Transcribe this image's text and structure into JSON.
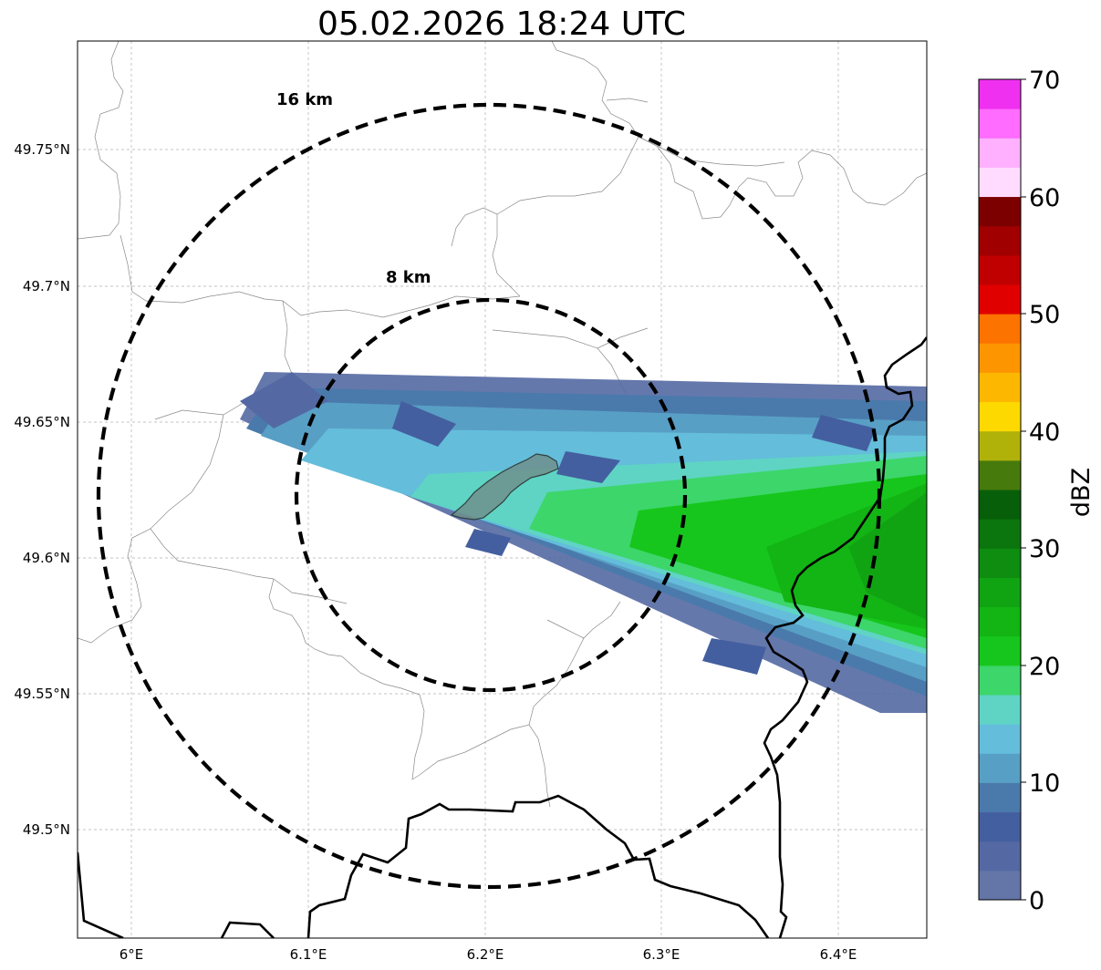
{
  "map": {
    "title": "05.02.2026 18:24 UTC",
    "longitude_labels": [
      "6°E",
      "6.1°E",
      "6.2°E",
      "6.3°E",
      "6.4°E"
    ],
    "latitude_labels": [
      "49.75°N",
      "49.7°N",
      "49.65°N",
      "49.6°N",
      "49.55°N",
      "49.5°N"
    ],
    "range_rings": [
      {
        "label": "16 km",
        "radius_km": 16
      },
      {
        "label": "8 km",
        "radius_km": 8
      }
    ],
    "ring_color": "#000000",
    "highlighted_area_color": "#6f8f8c"
  },
  "colorbar": {
    "label": "dBZ",
    "tick_labels": [
      "0",
      "10",
      "20",
      "30",
      "40",
      "50",
      "60",
      "70"
    ],
    "colors": [
      "#6475a7",
      "#5469a3",
      "#445f9f",
      "#4a7aab",
      "#589fc5",
      "#64bddb",
      "#5fd4c4",
      "#3dd66a",
      "#16c61c",
      "#12b514",
      "#10a412",
      "#0e8d10",
      "#0b760d",
      "#075f09",
      "#477a0c",
      "#b0b20a",
      "#fdd900",
      "#fdb700",
      "#fd9500",
      "#fd7300",
      "#e00000",
      "#c00000",
      "#a00000",
      "#7c0000",
      "#ffdcff",
      "#ffb0ff",
      "#ff6cff",
      "#f030f0"
    ]
  }
}
